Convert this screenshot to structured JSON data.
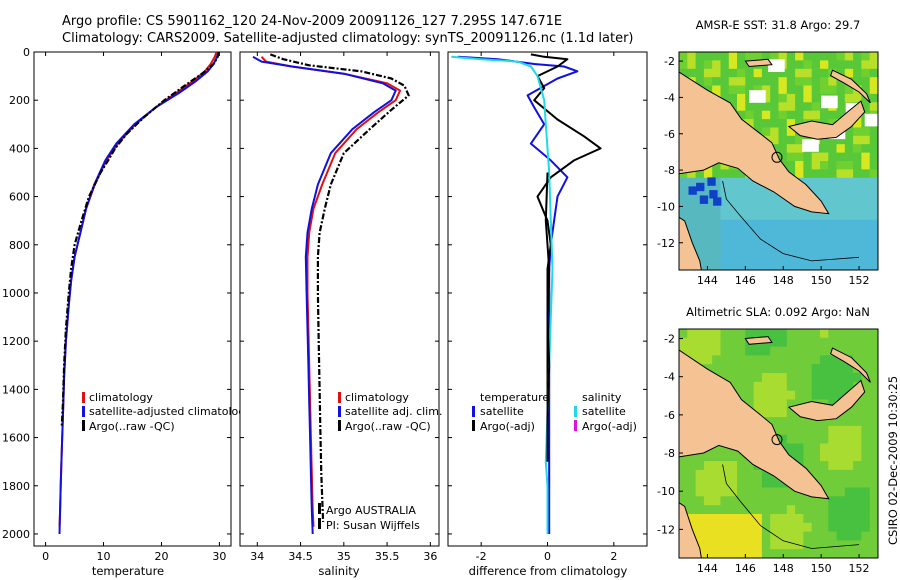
{
  "header": {
    "line1": "Argo profile: CS 5901162_120 24-Nov-2009 20091126_127 7.295S 147.671E",
    "line2": "Climatology: CARS2009. Satellite-adjusted climatology: synTS_20091126.nc (1.1d later)"
  },
  "side_label": "CSIRO 02-Dec-2009 10:30:25",
  "footer": {
    "institution": "Argo AUSTRALIA",
    "pi": "PI: Susan Wijffels"
  },
  "chart_data": [
    {
      "type": "line",
      "name": "temperature-profile",
      "xlabel": "temperature",
      "ylabel": "",
      "xlim": [
        -2,
        32
      ],
      "ylim": [
        0,
        2050
      ],
      "y_reversed": true,
      "xticks": [
        0,
        10,
        20,
        30
      ],
      "yticks": [
        0,
        200,
        400,
        600,
        800,
        1000,
        1200,
        1400,
        1600,
        1800,
        2000
      ],
      "legend": [
        "climatology",
        "satellite-adjusted climatology",
        "Argo(..raw -QC)"
      ],
      "legend_placement": "bottom-right",
      "series": [
        {
          "color": "#e01010",
          "x": [
            29.5,
            29.2,
            28.5,
            27.5,
            25.5,
            22.5,
            19.0,
            15.5,
            12.5,
            10.5,
            8.5,
            7.0,
            6.0,
            5.0,
            4.4,
            4.0,
            3.5,
            3.2,
            3.0,
            2.8,
            2.6,
            2.5,
            2.4
          ],
          "y": [
            0,
            20,
            50,
            80,
            120,
            170,
            230,
            300,
            380,
            450,
            550,
            650,
            750,
            850,
            950,
            1050,
            1200,
            1350,
            1500,
            1650,
            1800,
            1900,
            1970
          ]
        },
        {
          "color": "#1010e0",
          "x": [
            29.8,
            29.6,
            29.0,
            28.0,
            26.0,
            23.0,
            19.0,
            15.3,
            12.2,
            10.3,
            8.4,
            7.0,
            6.0,
            5.0,
            4.4,
            4.0,
            3.5,
            3.2,
            3.0,
            2.8,
            2.6,
            2.5,
            2.4
          ],
          "y": [
            0,
            20,
            50,
            80,
            120,
            170,
            230,
            300,
            380,
            450,
            550,
            650,
            750,
            850,
            950,
            1050,
            1200,
            1350,
            1500,
            1650,
            1800,
            1900,
            2000
          ]
        },
        {
          "color": "#000000",
          "x": [
            29.9,
            29.7,
            29.0,
            27.0,
            24.0,
            20.5,
            17.0,
            14.0,
            12.0,
            10.8,
            9.5,
            7.5,
            6.2,
            5.0,
            4.4,
            4.0,
            3.5,
            3.2,
            3.0,
            2.8
          ],
          "y": [
            0,
            20,
            50,
            90,
            140,
            200,
            270,
            340,
            400,
            450,
            500,
            600,
            700,
            800,
            900,
            1000,
            1150,
            1300,
            1450,
            1550
          ]
        }
      ]
    },
    {
      "type": "line",
      "name": "salinity-profile",
      "xlabel": "salinity",
      "ylabel": "",
      "xlim": [
        33.8,
        36.1
      ],
      "ylim": [
        0,
        2050
      ],
      "y_reversed": true,
      "xticks": [
        34,
        34.5,
        35,
        35.5,
        36
      ],
      "legend": [
        "climatology",
        "satellite adj. clim.",
        "Argo(..raw -QC)"
      ],
      "legend_placement": "bottom-right",
      "series": [
        {
          "color": "#e01010",
          "x": [
            34.05,
            34.1,
            34.4,
            35.0,
            35.5,
            35.65,
            35.6,
            35.4,
            35.15,
            34.9,
            34.75,
            34.65,
            34.6,
            34.58,
            34.58,
            34.59,
            34.6,
            34.61,
            34.62,
            34.63,
            34.64,
            34.65
          ],
          "y": [
            20,
            40,
            60,
            90,
            130,
            160,
            200,
            250,
            320,
            420,
            550,
            650,
            750,
            850,
            1000,
            1150,
            1300,
            1450,
            1600,
            1750,
            1900,
            1970
          ]
        },
        {
          "color": "#1010e0",
          "x": [
            33.95,
            34.05,
            34.4,
            35.0,
            35.45,
            35.6,
            35.55,
            35.35,
            35.1,
            34.85,
            34.7,
            34.63,
            34.58,
            34.56,
            34.57,
            34.58,
            34.59,
            34.6,
            34.61,
            34.62,
            34.63,
            34.64
          ],
          "y": [
            20,
            40,
            60,
            90,
            130,
            160,
            200,
            250,
            320,
            420,
            550,
            650,
            750,
            850,
            1000,
            1150,
            1300,
            1450,
            1600,
            1750,
            1900,
            2000
          ]
        },
        {
          "color": "#000000",
          "x": [
            34.15,
            34.3,
            34.6,
            35.2,
            35.55,
            35.7,
            35.75,
            35.55,
            35.3,
            35.0,
            34.85,
            34.78,
            34.72,
            34.7,
            34.7,
            34.71,
            34.72,
            34.73,
            34.74,
            34.75,
            34.76
          ],
          "y": [
            10,
            30,
            55,
            80,
            110,
            140,
            180,
            240,
            320,
            420,
            550,
            650,
            750,
            850,
            1000,
            1200,
            1400,
            1600,
            1750,
            1850,
            1950
          ]
        }
      ]
    },
    {
      "type": "line",
      "name": "difference-profile",
      "xlabel": "difference from climatology",
      "ylabel": "",
      "xlim": [
        -3,
        3
      ],
      "ylim": [
        0,
        2050
      ],
      "y_reversed": true,
      "xticks": [
        -2,
        0,
        2
      ],
      "legend_groups": [
        {
          "title": "temperature",
          "items": [
            "satellite",
            "Argo(-adj)"
          ]
        },
        {
          "title": "salinity",
          "items": [
            "satellite",
            "Argo(-adj)"
          ]
        }
      ],
      "legend_placement": "bottom",
      "series": [
        {
          "color": "#1010e0",
          "x": [
            -2.7,
            -1.5,
            -0.4,
            0.5,
            0.9,
            0.3,
            -0.6,
            -0.4,
            -0.1,
            -0.5,
            0.1,
            0.6,
            0.3,
            0.2,
            0.1,
            0.05,
            0.05,
            0.05,
            0.05,
            0.05,
            0.05,
            0.05,
            0.05
          ],
          "y": [
            20,
            30,
            50,
            60,
            80,
            110,
            180,
            230,
            300,
            380,
            450,
            520,
            600,
            700,
            800,
            900,
            1000,
            1200,
            1400,
            1600,
            1800,
            1900,
            2000
          ]
        },
        {
          "color": "#000000",
          "x": [
            -0.5,
            -0.1,
            0.6,
            0.3,
            -0.3,
            -0.1,
            -0.4,
            0.3,
            1.1,
            1.6,
            0.8,
            0.1,
            -0.3,
            0.0,
            0.1,
            0.0,
            0.0,
            0.0,
            0.0
          ],
          "y": [
            10,
            20,
            30,
            60,
            100,
            150,
            200,
            280,
            350,
            400,
            450,
            520,
            600,
            700,
            800,
            900,
            1000,
            1200,
            1500
          ]
        },
        {
          "color": "#20d8e8",
          "x": [
            -2.9,
            -2.0,
            -0.9,
            -0.5,
            -0.3,
            -0.1,
            -0.05,
            0.0,
            0.05,
            0.1,
            0.15,
            0.1,
            0.05,
            0.0,
            -0.05,
            0.0,
            0.0,
            0.0
          ],
          "y": [
            20,
            30,
            40,
            60,
            100,
            200,
            300,
            400,
            500,
            700,
            900,
            1100,
            1300,
            1500,
            1700,
            1800,
            1900,
            2000
          ]
        },
        {
          "color": "#000000",
          "x": [
            0.0,
            -0.05,
            0.05,
            0.0,
            0.05,
            0.0,
            0.0
          ],
          "y": [
            500,
            700,
            900,
            1100,
            1300,
            1500,
            1700
          ]
        }
      ]
    },
    {
      "type": "heatmap",
      "name": "sst-map",
      "title": "AMSR-E SST: 31.8 Argo: 29.7",
      "xlim": [
        142.5,
        153
      ],
      "ylim": [
        -13.5,
        -1.5
      ],
      "xticks": [
        144,
        146,
        148,
        150,
        152
      ],
      "yticks": [
        -2,
        -4,
        -6,
        -8,
        -10,
        -12
      ],
      "argo_position": [
        147.671,
        -7.295
      ]
    },
    {
      "type": "heatmap",
      "name": "sla-map",
      "title": "Altimetric SLA: 0.092 Argo: NaN",
      "xlim": [
        142.5,
        153
      ],
      "ylim": [
        -13.5,
        -1.5
      ],
      "xticks": [
        144,
        146,
        148,
        150,
        152
      ],
      "yticks": [
        -2,
        -4,
        -6,
        -8,
        -10,
        -12
      ],
      "argo_position": [
        147.671,
        -7.295
      ]
    }
  ]
}
